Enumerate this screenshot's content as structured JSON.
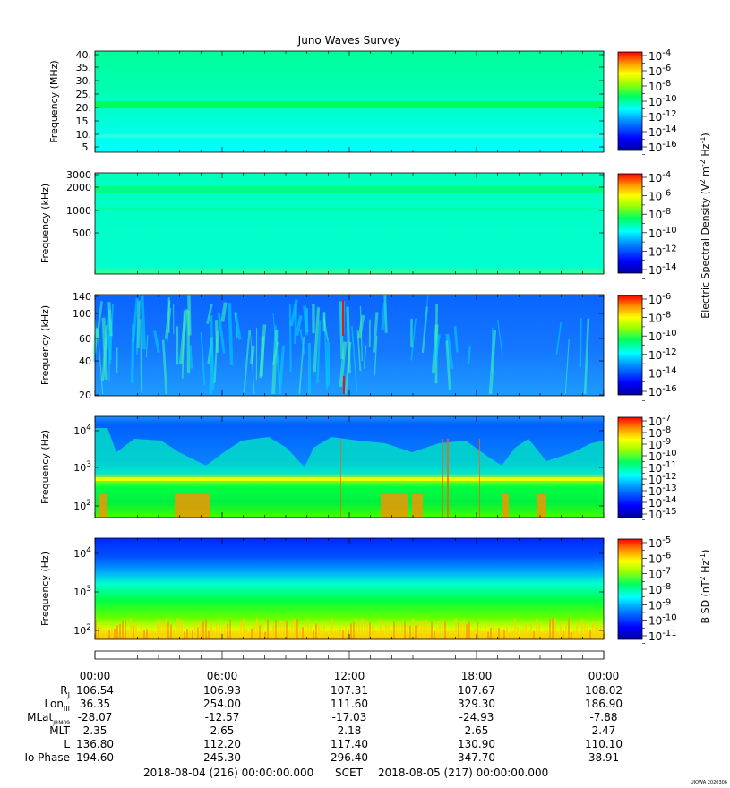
{
  "chart_data": {
    "type": "heatmap",
    "title": "Juno Waves Survey",
    "colors": {
      "ramp": [
        "#0000a0",
        "#0000ff",
        "#0090ff",
        "#00ffff",
        "#00ff60",
        "#a0ff00",
        "#ffff00",
        "#ff9000",
        "#ff0000"
      ]
    },
    "panels": [
      {
        "ylabel": "Frequency (MHz)",
        "yticks": [
          "40.",
          "35.",
          "30.",
          "25.",
          "20.",
          "15.",
          "10.",
          "5."
        ],
        "ylim": [
          3.5,
          41.5
        ],
        "yscale": "linear",
        "cbar_ticks": [
          {
            "b": "10",
            "e": "-4"
          },
          {
            "b": "10",
            "e": "-6"
          },
          {
            "b": "10",
            "e": "-8"
          },
          {
            "b": "10",
            "e": "-10"
          },
          {
            "b": "10",
            "e": "-12"
          },
          {
            "b": "10",
            "e": "-14"
          },
          {
            "b": "10",
            "e": "-16"
          }
        ],
        "background": 0.4
      },
      {
        "ylabel": "Frequency (kHz)",
        "yticks": [
          "3000",
          "2000",
          "1000",
          "500"
        ],
        "ylim": [
          100,
          3000
        ],
        "yscale": "log",
        "cbar_ticks": [
          {
            "b": "10",
            "e": "-4"
          },
          {
            "b": "10",
            "e": "-6"
          },
          {
            "b": "10",
            "e": "-8"
          },
          {
            "b": "10",
            "e": "-10"
          },
          {
            "b": "10",
            "e": "-12"
          },
          {
            "b": "10",
            "e": "-14"
          }
        ],
        "background": 0.42
      },
      {
        "ylabel": "Frequency (kHz)",
        "yticks": [
          "140",
          "100",
          "60",
          "40",
          "20"
        ],
        "ylim": [
          20,
          140
        ],
        "yscale": "log",
        "cbar_ticks": [
          {
            "b": "10",
            "e": "-6"
          },
          {
            "b": "10",
            "e": "-8"
          },
          {
            "b": "10",
            "e": "-10"
          },
          {
            "b": "10",
            "e": "-12"
          },
          {
            "b": "10",
            "e": "-14"
          },
          {
            "b": "10",
            "e": "-16"
          }
        ],
        "background": 0.22
      },
      {
        "ylabel": "Frequency (Hz)",
        "yticks": [
          {
            "b": "10",
            "e": "4"
          },
          {
            "b": "10",
            "e": "3"
          },
          {
            "b": "10",
            "e": "2"
          }
        ],
        "ylim": [
          50,
          20000
        ],
        "yscale": "log",
        "cbar_ticks": [
          {
            "b": "10",
            "e": "-7"
          },
          {
            "b": "10",
            "e": "-8"
          },
          {
            "b": "10",
            "e": "-9"
          },
          {
            "b": "10",
            "e": "-10"
          },
          {
            "b": "10",
            "e": "-11"
          },
          {
            "b": "10",
            "e": "-12"
          },
          {
            "b": "10",
            "e": "-13"
          },
          {
            "b": "10",
            "e": "-14"
          },
          {
            "b": "10",
            "e": "-15"
          }
        ],
        "background": 0.25
      },
      {
        "ylabel": "Frequency (Hz)",
        "yticks": [
          {
            "b": "10",
            "e": "4"
          },
          {
            "b": "10",
            "e": "3"
          },
          {
            "b": "10",
            "e": "2"
          }
        ],
        "ylim": [
          50,
          20000
        ],
        "yscale": "log",
        "cbar_ticks": [
          {
            "b": "10",
            "e": "-5"
          },
          {
            "b": "10",
            "e": "-6"
          },
          {
            "b": "10",
            "e": "-7"
          },
          {
            "b": "10",
            "e": "-8"
          },
          {
            "b": "10",
            "e": "-9"
          },
          {
            "b": "10",
            "e": "-10"
          },
          {
            "b": "10",
            "e": "-11"
          }
        ],
        "background": 0.2
      }
    ],
    "cbar_labels": [
      {
        "text": "Electric Spectral Density (V",
        "sup1": "2",
        "mid": " m",
        "sup2": "-2",
        "mid2": " Hz",
        "sup3": "-1",
        "end": ")"
      },
      {
        "text": "B SD (nT",
        "sup1": "2",
        "mid": " Hz",
        "sup2": "-1",
        "end": ")"
      }
    ],
    "x_ticks": [
      "00:00",
      "06:00",
      "12:00",
      "18:00",
      "00:00"
    ],
    "ephemeris": [
      {
        "label": "R",
        "sub": "J",
        "values": [
          "106.54",
          "106.93",
          "107.31",
          "107.67",
          "108.02"
        ]
      },
      {
        "label": "Lon",
        "sub": "III",
        "values": [
          "36.35",
          "254.00",
          "111.60",
          "329.30",
          "186.90"
        ]
      },
      {
        "label": "MLat",
        "sub": "JRM09",
        "values": [
          "-28.07",
          "-12.57",
          "-17.03",
          "-24.93",
          "-7.88"
        ]
      },
      {
        "label": "MLT",
        "sub": "",
        "values": [
          "2.35",
          "2.65",
          "2.18",
          "2.65",
          "2.47"
        ]
      },
      {
        "label": "L",
        "sub": "",
        "values": [
          "136.80",
          "112.20",
          "117.40",
          "130.90",
          "110.10"
        ]
      },
      {
        "label": "Io Phase",
        "sub": "",
        "values": [
          "194.60",
          "245.30",
          "296.40",
          "347.70",
          "38.91"
        ]
      }
    ],
    "footer": {
      "start": "2018-08-04 (216) 00:00:00.000",
      "scet": "SCET",
      "end": "2018-08-05 (217) 00:00:00.000"
    },
    "stamp": "UIOWA 2020306"
  }
}
